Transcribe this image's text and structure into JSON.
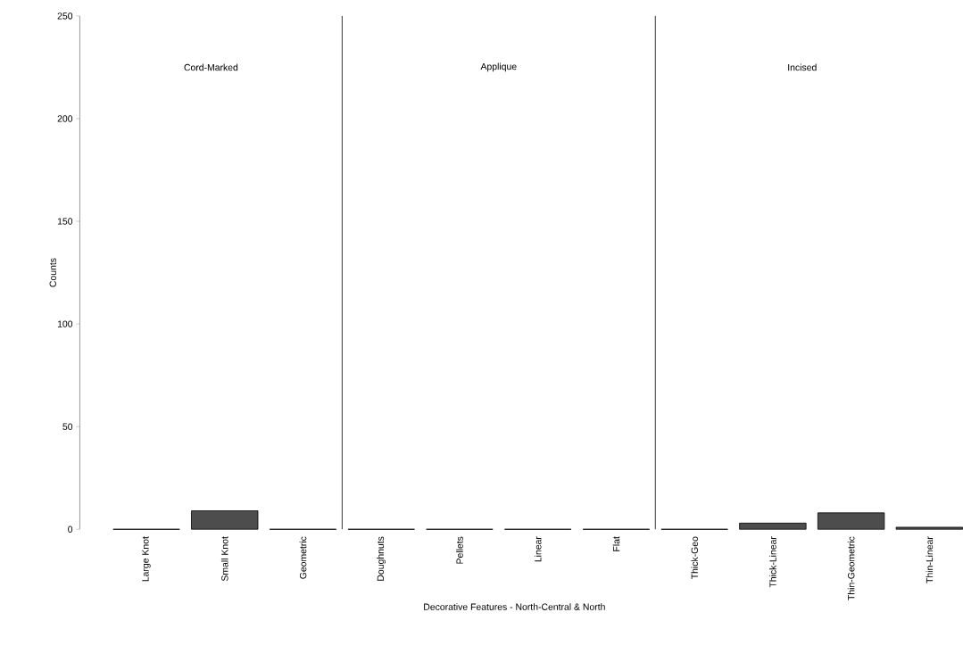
{
  "chart_data": {
    "type": "bar",
    "xlabel": "Decorative Features - North-Central & North",
    "ylabel": "Counts",
    "categories": [
      "Large Knot",
      "Small Knot",
      "Geometric",
      "Doughnuts",
      "Pellets",
      "Linear",
      "Flat",
      "Thick-Geo",
      "Thick-Linear",
      "Thin-Geometric",
      "Thin-Linear"
    ],
    "values": [
      0,
      9,
      0,
      0,
      0,
      0,
      0,
      0,
      3,
      8,
      1
    ],
    "color": "#4d4d4d",
    "ylim": [
      0,
      250
    ],
    "yticks": [
      0,
      50,
      100,
      150,
      200,
      250
    ],
    "annotations": [
      "Cord-Marked",
      "Applique",
      "Incised"
    ],
    "grid": false
  }
}
